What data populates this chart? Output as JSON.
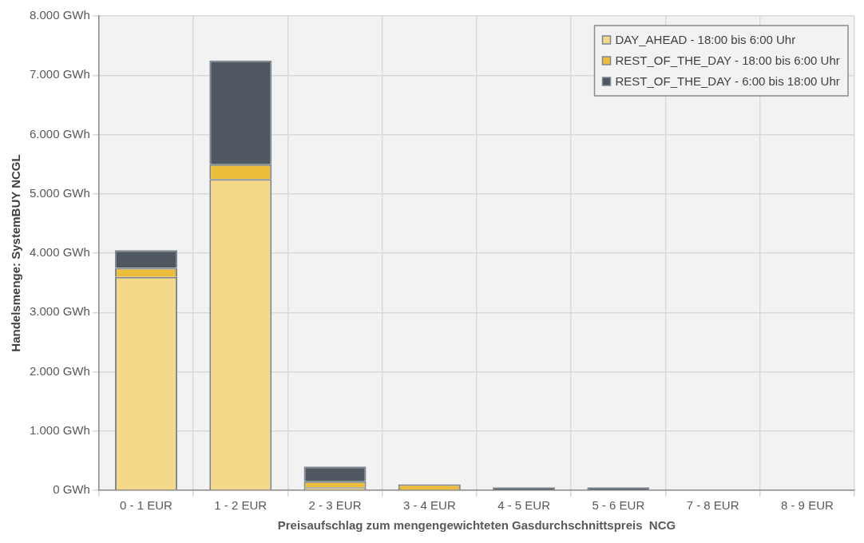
{
  "chart_data": {
    "type": "bar",
    "stacked": true,
    "xlabel": "Preisaufschlag zum mengengewichteten Gasdurchschnittspreis  NCG",
    "ylabel": "Handelsmenge: SystemBUY NCGL",
    "categories": [
      "0 - 1 EUR",
      "1 - 2 EUR",
      "2 - 3 EUR",
      "3 - 4 EUR",
      "4 - 5 EUR",
      "5 - 6 EUR",
      "7 - 8 EUR",
      "8 - 9 EUR"
    ],
    "series": [
      {
        "name": "DAY_AHEAD - 18:00 bis 6:00 Uhr",
        "color": "#f5d98a",
        "values": [
          3600,
          5250,
          50,
          0,
          0,
          0,
          0,
          0
        ]
      },
      {
        "name": "REST_OF_THE_DAY - 18:00 bis 6:00 Uhr",
        "color": "#ebbd3a",
        "values": [
          150,
          250,
          100,
          100,
          0,
          0,
          0,
          0
        ]
      },
      {
        "name": "REST_OF_THE_DAY - 6:00 bis 18:00 Uhr",
        "color": "#4f5861",
        "values": [
          300,
          1750,
          250,
          0,
          50,
          50,
          0,
          0
        ]
      }
    ],
    "ylim": [
      0,
      8000
    ],
    "yticks": [
      {
        "value": 0,
        "label": "0 GWh"
      },
      {
        "value": 1000,
        "label": "1.000 GWh"
      },
      {
        "value": 2000,
        "label": "2.000 GWh"
      },
      {
        "value": 3000,
        "label": "3.000 GWh"
      },
      {
        "value": 4000,
        "label": "4.000 GWh"
      },
      {
        "value": 5000,
        "label": "5.000 GWh"
      },
      {
        "value": 6000,
        "label": "6.000 GWh"
      },
      {
        "value": 7000,
        "label": "7.000 GWh"
      },
      {
        "value": 8000,
        "label": "8.000 GWh"
      }
    ],
    "grid": true,
    "legend": "top right"
  }
}
